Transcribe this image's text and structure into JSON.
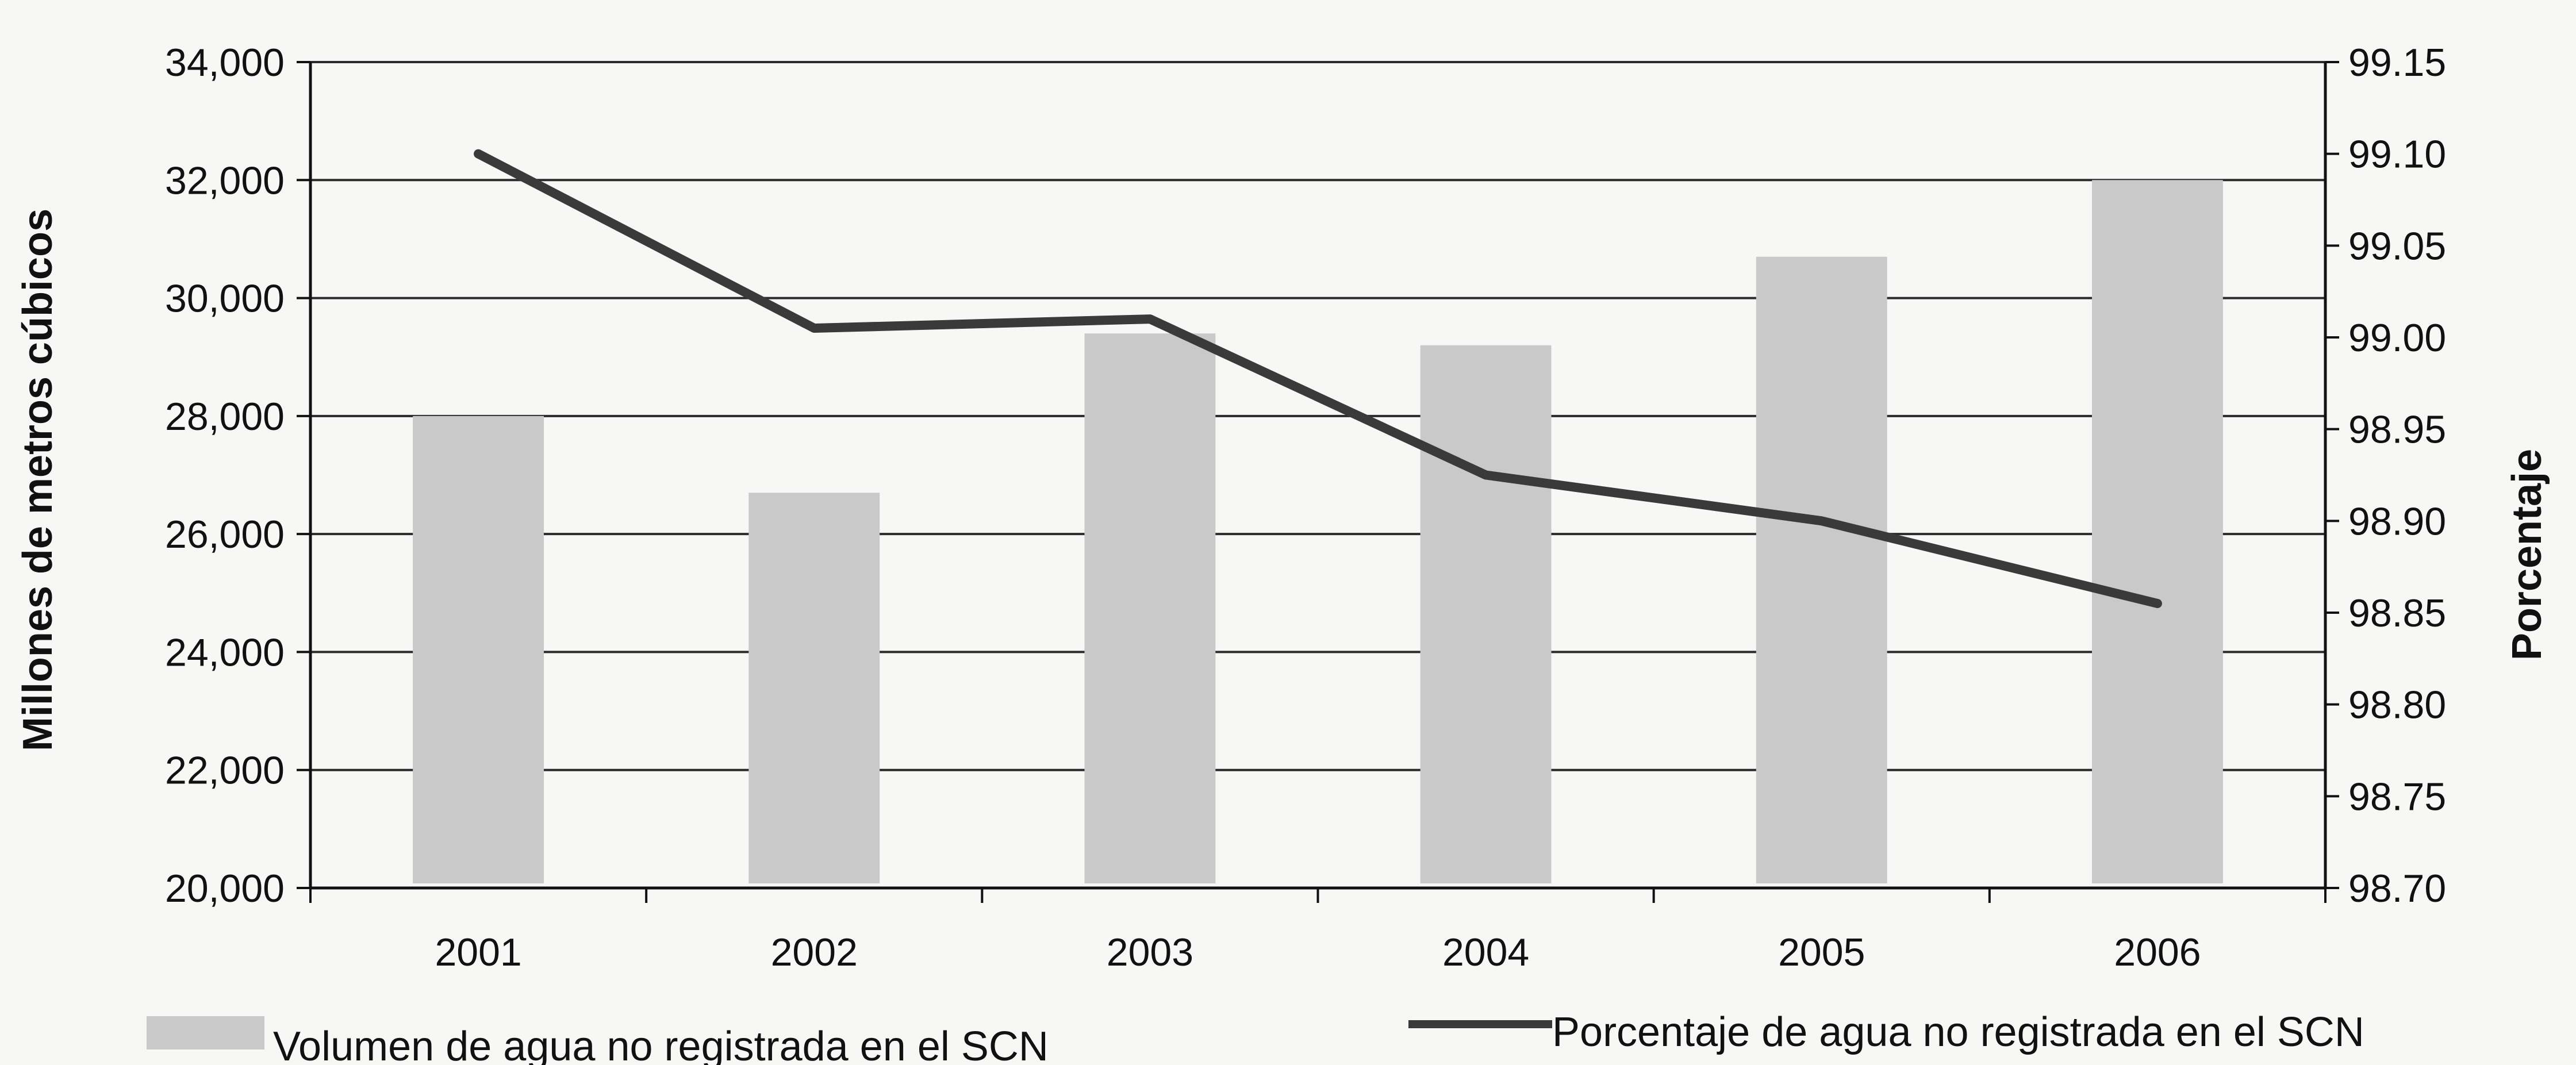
{
  "chart_data": {
    "type": "bar+line",
    "categories": [
      "2001",
      "2002",
      "2003",
      "2004",
      "2005",
      "2006"
    ],
    "series": [
      {
        "name": "Volumen de agua no registrada en el SCN",
        "type": "bar",
        "axis": "left",
        "values": [
          28000,
          26700,
          29400,
          29200,
          30700,
          32000
        ],
        "color": "#c9c9c9"
      },
      {
        "name": "Porcentaje de agua no registrada en el SCN",
        "type": "line",
        "axis": "right",
        "values": [
          99.1,
          99.005,
          99.01,
          98.925,
          98.9,
          98.855
        ],
        "color": "#3a3a3a"
      }
    ],
    "ylabel": "Millones de metros cúbicos",
    "y2label": "Porcentaje",
    "ylim": [
      20000,
      34000
    ],
    "y2lim": [
      98.7,
      99.15
    ],
    "yticks": [
      "34,000",
      "32,000",
      "30,000",
      "28,000",
      "26,000",
      "24,000",
      "22,000",
      "20,000"
    ],
    "y2ticks": [
      "99.15",
      "99.10",
      "99.05",
      "99.00",
      "98.95",
      "98.90",
      "98.85",
      "98.80",
      "98.75",
      "98.70"
    ],
    "grid": true,
    "legend": "bottom"
  }
}
